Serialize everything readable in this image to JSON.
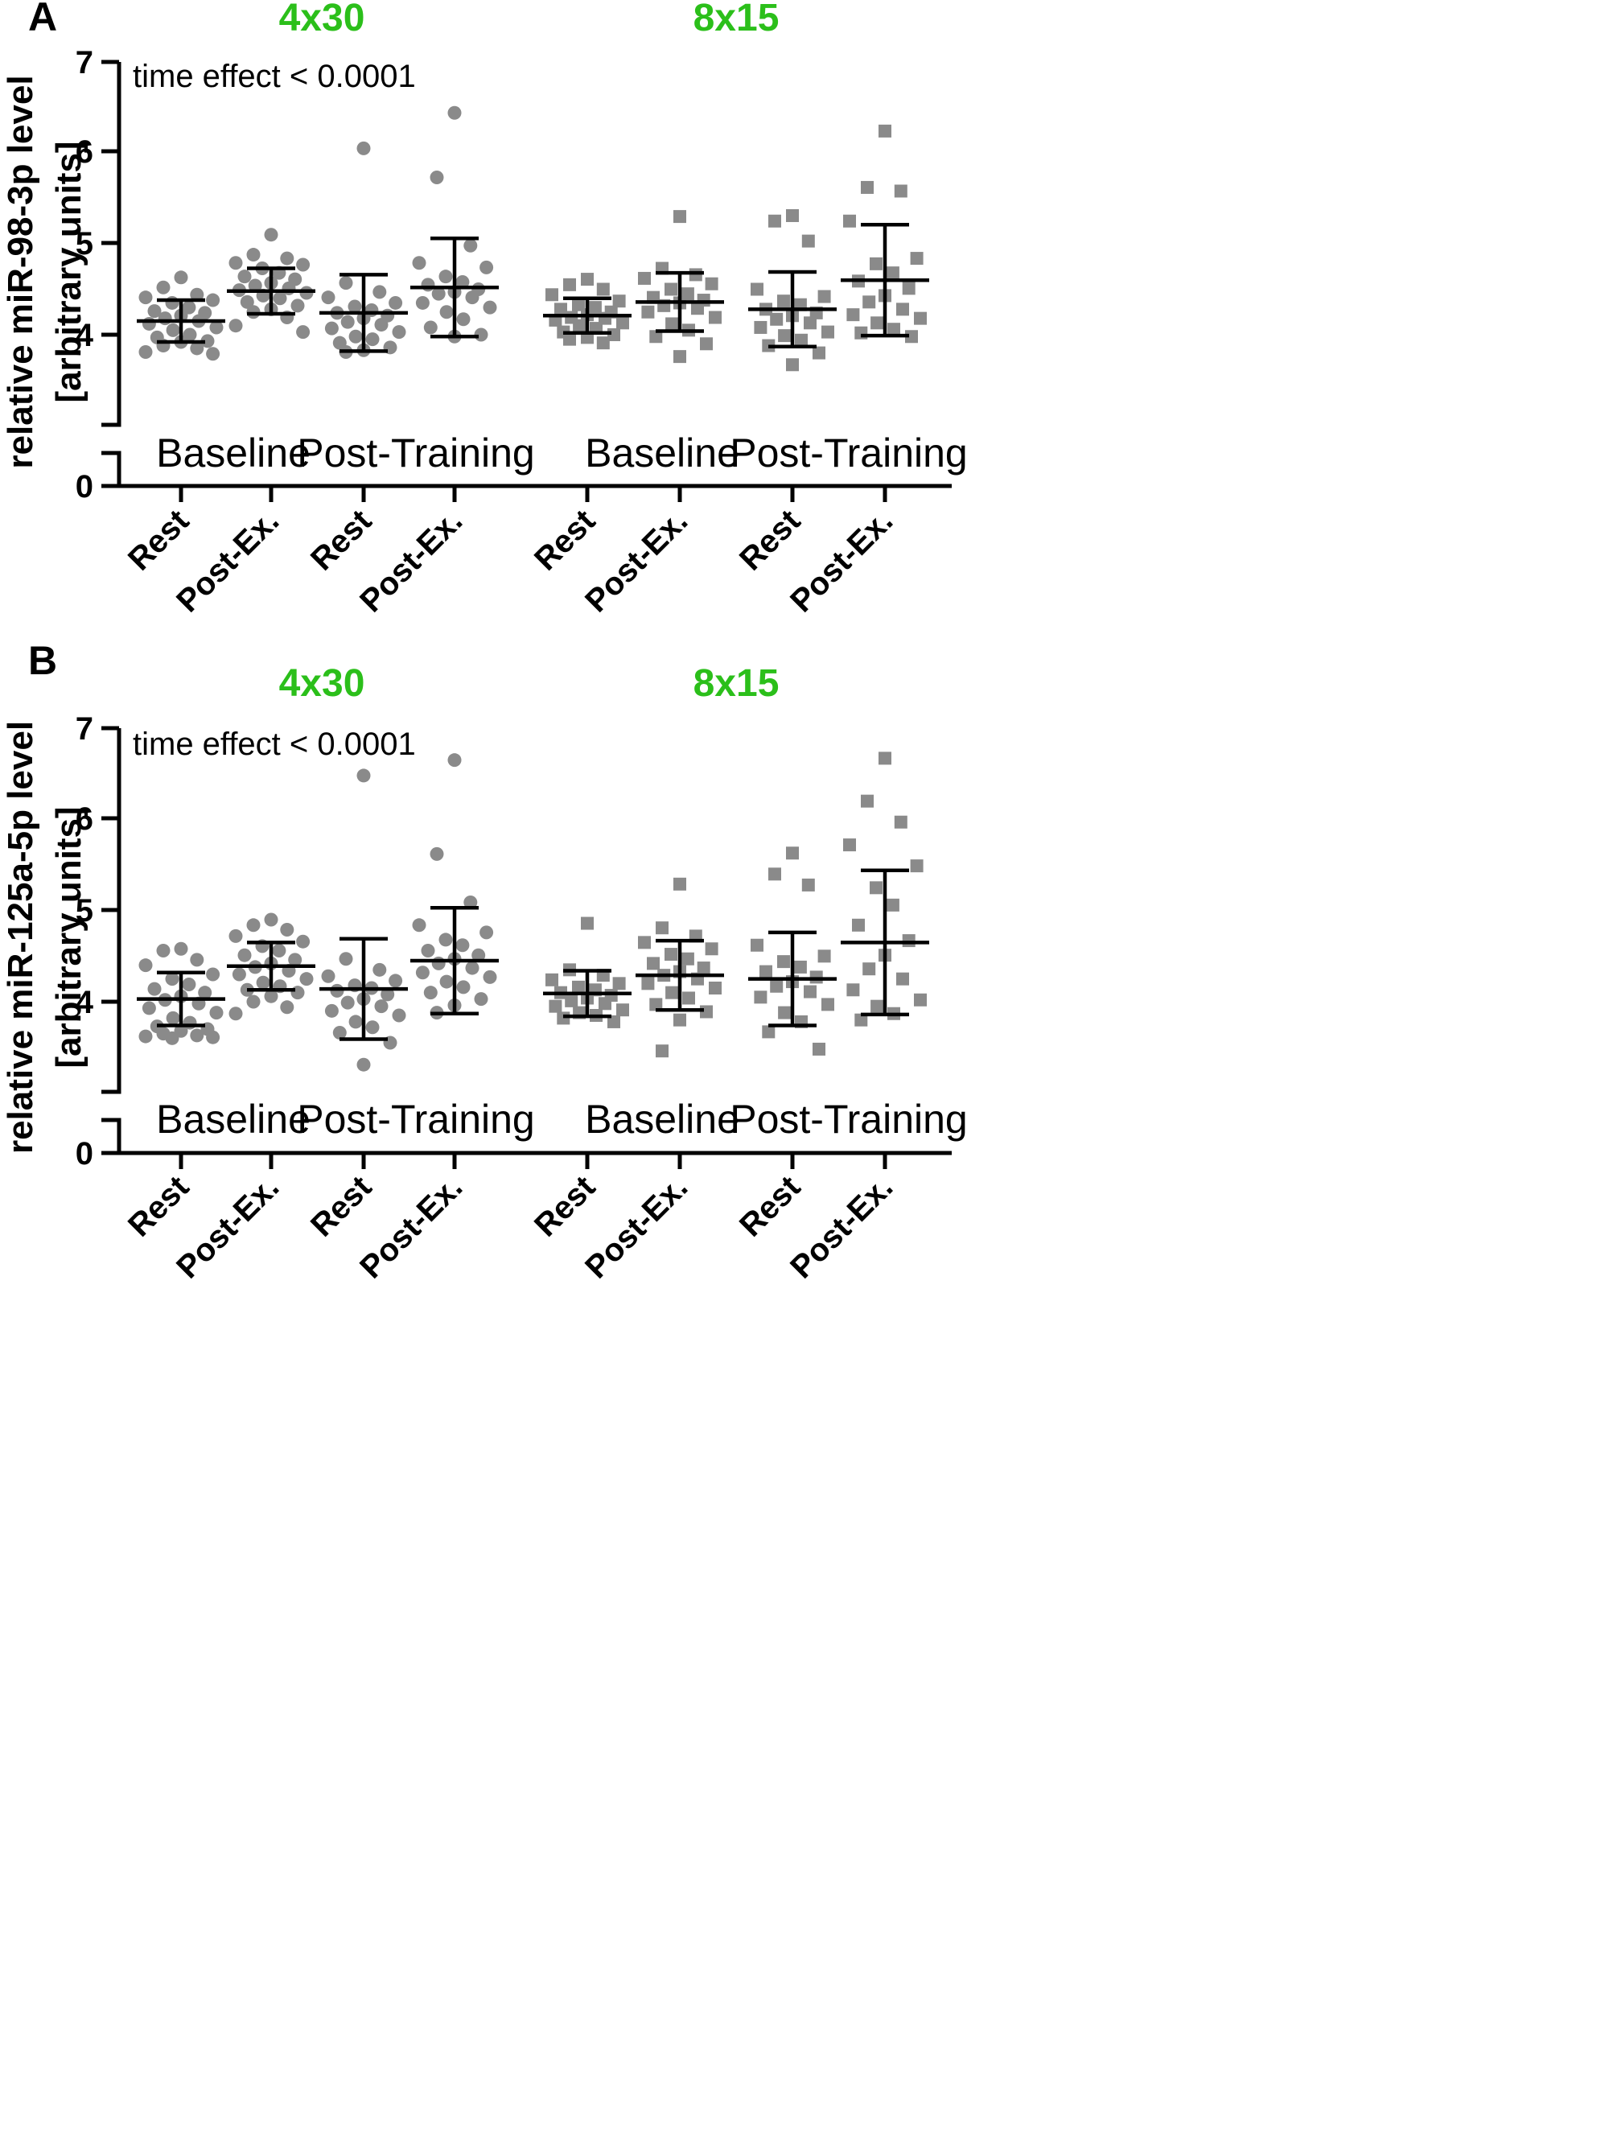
{
  "colors": {
    "points": "#8a8a8a",
    "axis": "#000000",
    "group_title": "#2bbf1a"
  },
  "chart_data": [
    {
      "panel": "A",
      "type": "scatter",
      "marker": "circle",
      "ylabel": [
        "relative miR-98-3p level",
        "[arbitrary units]"
      ],
      "annotation": "time effect < 0.0001",
      "ylim": [
        0,
        7
      ],
      "yticks": [
        "0",
        "4",
        "5",
        "6",
        "7"
      ],
      "axis_break": [
        0,
        3
      ],
      "groups": [
        {
          "title": "4x30",
          "periods": [
            "Baseline",
            "Post-Training"
          ]
        },
        {
          "title": "8x15",
          "periods": [
            "Baseline",
            "Post-Training"
          ]
        }
      ],
      "categories": [
        "Rest",
        "Post-Ex.",
        "Rest",
        "Post-Ex.",
        "Rest",
        "Post-Ex.",
        "Rest",
        "Post-Ex."
      ],
      "series": [
        {
          "mean": 4.15,
          "sd": 0.23,
          "values": [
            4.63,
            4.52,
            4.44,
            4.41,
            4.38,
            4.35,
            4.3,
            4.26,
            4.24,
            4.21,
            4.18,
            4.15,
            4.12,
            4.08,
            4.05,
            4.0,
            3.97,
            3.93,
            3.92,
            3.88,
            3.85,
            3.81,
            3.79
          ]
        },
        {
          "mean": 4.48,
          "sd": 0.25,
          "values": [
            5.1,
            4.88,
            4.84,
            4.79,
            4.77,
            4.73,
            4.68,
            4.64,
            4.61,
            4.57,
            4.54,
            4.51,
            4.49,
            4.46,
            4.43,
            4.4,
            4.36,
            4.32,
            4.28,
            4.25,
            4.19,
            4.1,
            4.03
          ]
        },
        {
          "mean": 4.24,
          "sd": 0.42,
          "values": [
            6.05,
            4.57,
            4.47,
            4.41,
            4.35,
            4.31,
            4.27,
            4.24,
            4.21,
            4.18,
            4.14,
            4.11,
            4.07,
            4.03,
            3.98,
            3.95,
            3.91,
            3.86,
            3.83,
            3.81
          ]
        },
        {
          "mean": 4.52,
          "sd": 0.54,
          "values": [
            6.44,
            5.73,
            4.98,
            4.79,
            4.74,
            4.64,
            4.58,
            4.55,
            4.5,
            4.47,
            4.45,
            4.41,
            4.35,
            4.3,
            4.25,
            4.17,
            4.08,
            4.0,
            3.98
          ]
        },
        {
          "mean": 4.21,
          "sd": 0.19,
          "values": [
            4.61,
            4.55,
            4.5,
            4.44,
            4.37,
            4.33,
            4.3,
            4.28,
            4.25,
            4.22,
            4.19,
            4.18,
            4.16,
            4.13,
            4.1,
            4.07,
            4.03,
            4.0,
            3.97,
            3.95,
            3.91
          ]
        },
        {
          "mean": 4.36,
          "sd": 0.32,
          "values": [
            5.3,
            4.73,
            4.66,
            4.62,
            4.56,
            4.5,
            4.45,
            4.41,
            4.38,
            4.35,
            4.32,
            4.29,
            4.25,
            4.19,
            4.12,
            4.05,
            3.98,
            3.9,
            3.76
          ]
        },
        {
          "mean": 4.28,
          "sd": 0.41,
          "values": [
            5.31,
            5.25,
            5.03,
            4.5,
            4.42,
            4.37,
            4.33,
            4.28,
            4.24,
            4.21,
            4.17,
            4.13,
            4.08,
            4.03,
            3.99,
            3.94,
            3.88,
            3.8,
            3.67
          ]
        },
        {
          "mean": 4.6,
          "sd": 0.61,
          "values": [
            6.24,
            5.62,
            5.58,
            5.25,
            4.84,
            4.78,
            4.68,
            4.59,
            4.51,
            4.43,
            4.36,
            4.28,
            4.22,
            4.18,
            4.13,
            4.06,
            4.02,
            3.98
          ]
        }
      ]
    },
    {
      "panel": "B",
      "type": "scatter",
      "marker": "circle",
      "ylabel": [
        "relative miR-125a-5p level",
        "[arbitrary units]"
      ],
      "annotation": "time effect < 0.0001",
      "ylim": [
        0,
        7
      ],
      "yticks": [
        "0",
        "4",
        "5",
        "6",
        "7"
      ],
      "axis_break": [
        0,
        3
      ],
      "groups": [
        {
          "title": "4x30",
          "periods": [
            "Baseline",
            "Post-Training"
          ]
        },
        {
          "title": "8x15",
          "periods": [
            "Baseline",
            "Post-Training"
          ]
        }
      ],
      "categories": [
        "Rest",
        "Post-Ex.",
        "Rest",
        "Post-Ex.",
        "Rest",
        "Post-Ex.",
        "Rest",
        "Post-Ex."
      ],
      "series": [
        {
          "mean": 4.03,
          "sd": 0.29,
          "values": [
            4.58,
            4.56,
            4.46,
            4.4,
            4.3,
            4.25,
            4.19,
            4.14,
            4.1,
            4.06,
            4.02,
            3.98,
            3.93,
            3.88,
            3.82,
            3.77,
            3.73,
            3.7,
            3.68,
            3.65,
            3.63,
            3.62,
            3.61,
            3.6
          ]
        },
        {
          "mean": 4.39,
          "sd": 0.26,
          "values": [
            4.9,
            4.84,
            4.79,
            4.72,
            4.66,
            4.61,
            4.56,
            4.51,
            4.46,
            4.42,
            4.38,
            4.34,
            4.3,
            4.25,
            4.21,
            4.17,
            4.13,
            4.1,
            4.06,
            4.0,
            3.94,
            3.87
          ]
        },
        {
          "mean": 4.14,
          "sd": 0.55,
          "values": [
            6.48,
            4.47,
            4.35,
            4.28,
            4.23,
            4.18,
            4.15,
            4.12,
            4.08,
            4.03,
            3.99,
            3.95,
            3.9,
            3.85,
            3.78,
            3.72,
            3.66,
            3.55,
            3.31
          ]
        },
        {
          "mean": 4.45,
          "sd": 0.58,
          "values": [
            6.65,
            5.62,
            5.09,
            4.84,
            4.76,
            4.68,
            4.62,
            4.56,
            4.51,
            4.47,
            4.42,
            4.37,
            4.32,
            4.27,
            4.22,
            4.16,
            4.1,
            4.03,
            3.96,
            3.88
          ]
        },
        {
          "mean": 4.09,
          "sd": 0.25,
          "values": [
            4.86,
            4.35,
            4.29,
            4.24,
            4.2,
            4.16,
            4.13,
            4.1,
            4.07,
            4.04,
            4.01,
            3.98,
            3.95,
            3.91,
            3.88,
            3.85,
            3.82,
            3.78
          ]
        },
        {
          "mean": 4.29,
          "sd": 0.38,
          "values": [
            5.29,
            4.81,
            4.72,
            4.65,
            4.58,
            4.52,
            4.47,
            4.42,
            4.37,
            4.33,
            4.29,
            4.25,
            4.2,
            4.15,
            4.1,
            4.04,
            3.97,
            3.89,
            3.8,
            3.46
          ]
        },
        {
          "mean": 4.25,
          "sd": 0.51,
          "values": [
            5.63,
            5.4,
            5.28,
            4.62,
            4.5,
            4.44,
            4.38,
            4.33,
            4.27,
            4.22,
            4.17,
            4.11,
            4.05,
            3.97,
            3.88,
            3.78,
            3.67,
            3.48
          ]
        },
        {
          "mean": 4.65,
          "sd": 0.79,
          "values": [
            6.67,
            6.2,
            5.97,
            5.72,
            5.49,
            5.25,
            5.06,
            4.84,
            4.67,
            4.51,
            4.36,
            4.25,
            4.13,
            4.02,
            3.95,
            3.87,
            3.8
          ]
        }
      ]
    }
  ]
}
